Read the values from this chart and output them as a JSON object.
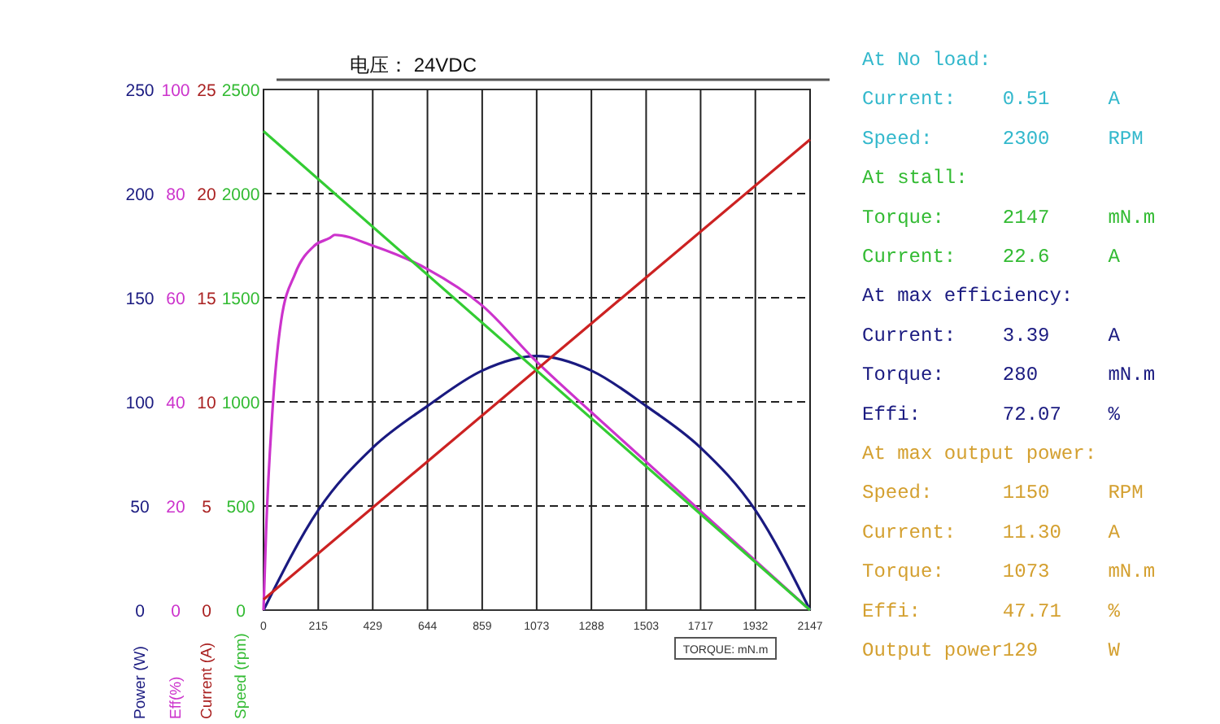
{
  "chart_data": [
    {
      "type": "line",
      "title": "电压： 24VDC",
      "xlabel": "TORQUE: mN.m",
      "ylabel": "Power (W)",
      "xlim": [
        0,
        2147
      ],
      "xticks": [
        0,
        215,
        429,
        644,
        859,
        1073,
        1288,
        1503,
        1717,
        1932,
        2147
      ],
      "ylim": [
        0,
        250
      ],
      "yticks": [
        0,
        50,
        100,
        150,
        200,
        250
      ],
      "grid": true,
      "series": [
        {
          "color": "#1a1a80",
          "x": [
            0,
            215,
            429,
            644,
            859,
            1073,
            1288,
            1503,
            1717,
            1932,
            2147
          ],
          "values": [
            0,
            48,
            78,
            98,
            115,
            122,
            115,
            98,
            78,
            48,
            0
          ]
        }
      ],
      "annotations": [
        "At No load:",
        "Current:    0.51     A",
        "Speed:      2300     RPM",
        "At stall:",
        "Torque:     2147     mN.m",
        "Current:    22.6     A",
        "At max efficiency:",
        "Current:    3.39     A",
        "Torque:     280      mN.m",
        "Effi:       72.07    %",
        "At max output power:",
        "Speed:      1150     RPM",
        "Current:    11.30    A",
        "Torque:     1073     mN.m",
        "Effi:       47.71    %",
        "Output power129      W"
      ]
    },
    {
      "type": "line",
      "ylabel": "Eff(%)",
      "xlim": [
        0,
        2147
      ],
      "ylim": [
        0,
        100
      ],
      "yticks": [
        0,
        20,
        40,
        60,
        80,
        100
      ],
      "tick_labels": "y",
      "series": [
        {
          "color": "#cc33cc",
          "x": [
            0,
            10,
            34,
            69,
            124,
            200,
            261,
            280,
            429,
            644,
            859,
            1073,
            1288,
            1503,
            1717,
            1932,
            2147
          ],
          "values": [
            0,
            15,
            37.5,
            55.5,
            64.6,
            70,
            71.5,
            72.07,
            70,
            65.5,
            58.5,
            47.71,
            38,
            28.5,
            19,
            9.5,
            0
          ]
        }
      ]
    },
    {
      "type": "line",
      "ylabel": "Current (A)",
      "xlim": [
        0,
        2147
      ],
      "ylim": [
        0,
        25
      ],
      "yticks": [
        0,
        5,
        10,
        15,
        20,
        25
      ],
      "tick_labels": "y",
      "series": [
        {
          "color": "#cc2222",
          "x": [
            0,
            2147
          ],
          "values": [
            0.51,
            22.6
          ]
        }
      ]
    },
    {
      "type": "line",
      "ylabel": "Speed (rpm)",
      "xlim": [
        0,
        2147
      ],
      "ylim": [
        0,
        2500
      ],
      "yticks": [
        0,
        500,
        1000,
        1500,
        2000,
        2500
      ],
      "tick_labels": "y",
      "series": [
        {
          "color": "#33cc33",
          "x": [
            0,
            2147
          ],
          "values": [
            2300,
            0
          ]
        }
      ]
    }
  ]
}
